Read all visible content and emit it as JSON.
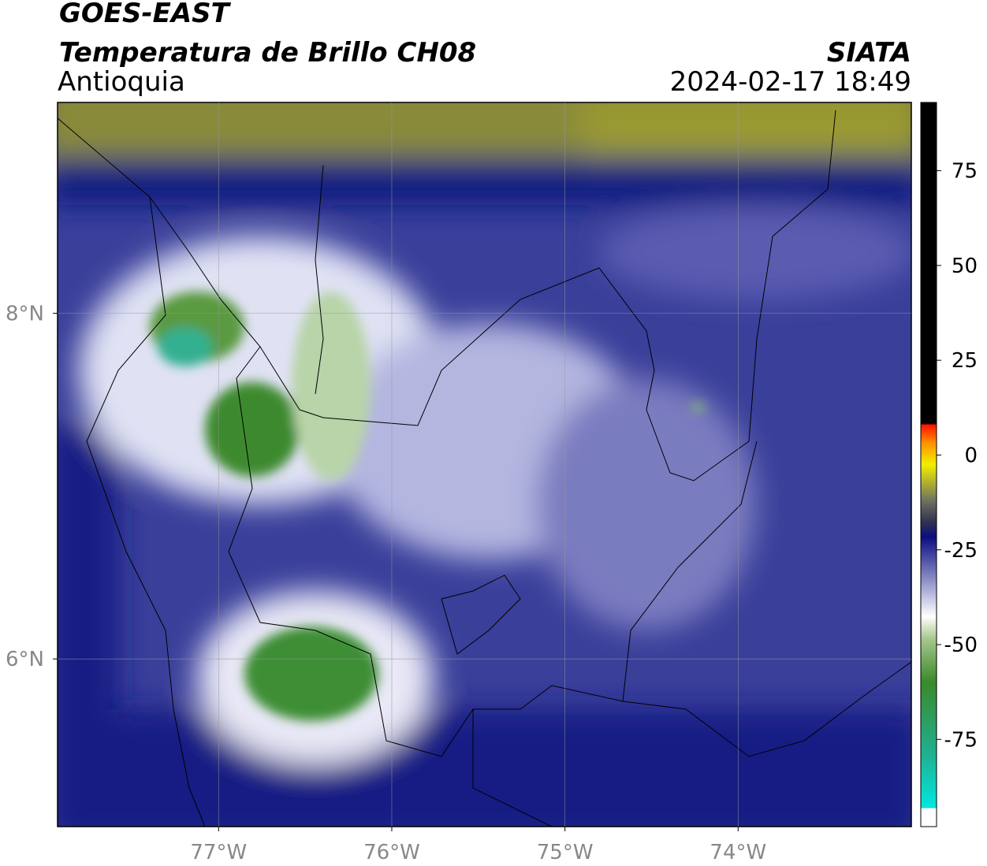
{
  "header": {
    "title": "GOES-EAST",
    "subtitle": "Temperatura de Brillo CH08",
    "region": "Antioquia",
    "source": "SIATA",
    "datetime": "2024-02-17 18:49"
  },
  "map": {
    "xlim": [
      -77.93,
      -73.0
    ],
    "ylim": [
      5.03,
      9.22
    ],
    "xticks": [
      {
        "value": -77,
        "label": "77°W"
      },
      {
        "value": -76,
        "label": "76°W"
      },
      {
        "value": -75,
        "label": "75°W"
      },
      {
        "value": -74,
        "label": "74°W"
      }
    ],
    "yticks": [
      {
        "value": 6,
        "label": "6°N"
      },
      {
        "value": 8,
        "label": "8°N"
      }
    ]
  },
  "colorbar": {
    "lim": [
      -98,
      93
    ],
    "ticks": [
      75,
      50,
      25,
      0,
      -25,
      -50,
      -75
    ]
  }
}
